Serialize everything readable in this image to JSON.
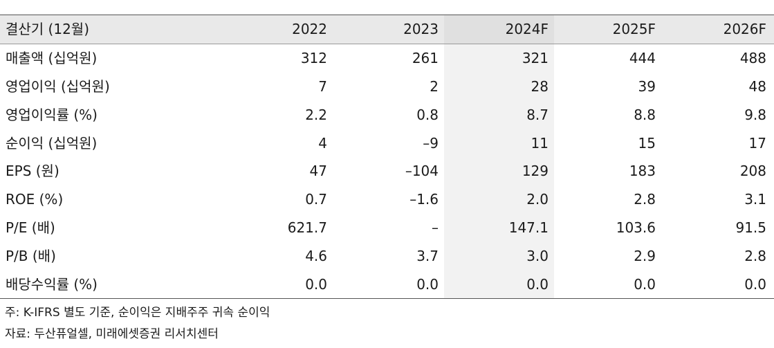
{
  "table": {
    "header": [
      "결산기 (12월)",
      "2022",
      "2023",
      "2024F",
      "2025F",
      "2026F"
    ],
    "rows": [
      [
        "매출액 (십억원)",
        "312",
        "261",
        "321",
        "444",
        "488"
      ],
      [
        "영업이익 (십억원)",
        "7",
        "2",
        "28",
        "39",
        "48"
      ],
      [
        "영업이익률 (%)",
        "2.2",
        "0.8",
        "8.7",
        "8.8",
        "9.8"
      ],
      [
        "순이익 (십억원)",
        "4",
        "–9",
        "11",
        "15",
        "17"
      ],
      [
        "EPS (원)",
        "47",
        "–104",
        "129",
        "183",
        "208"
      ],
      [
        "ROE (%)",
        "0.7",
        "–1.6",
        "2.0",
        "2.8",
        "3.1"
      ],
      [
        "P/E (배)",
        "621.7",
        "–",
        "147.1",
        "103.6",
        "91.5"
      ],
      [
        "P/B (배)",
        "4.6",
        "3.7",
        "3.0",
        "2.9",
        "2.8"
      ],
      [
        "배당수익률 (%)",
        "0.0",
        "0.0",
        "0.0",
        "0.0",
        "0.0"
      ]
    ]
  },
  "notes": {
    "note": "주: K-IFRS 별도 기준, 순이익은 지배주주 귀속 순이익",
    "source": "자료: 두산퓨얼셀, 미래에셋증권 리서치센터"
  },
  "colors": {
    "header_bg": "#e9e9e9",
    "forecast_shade": "#f2f2f2",
    "rule": "#555555"
  }
}
